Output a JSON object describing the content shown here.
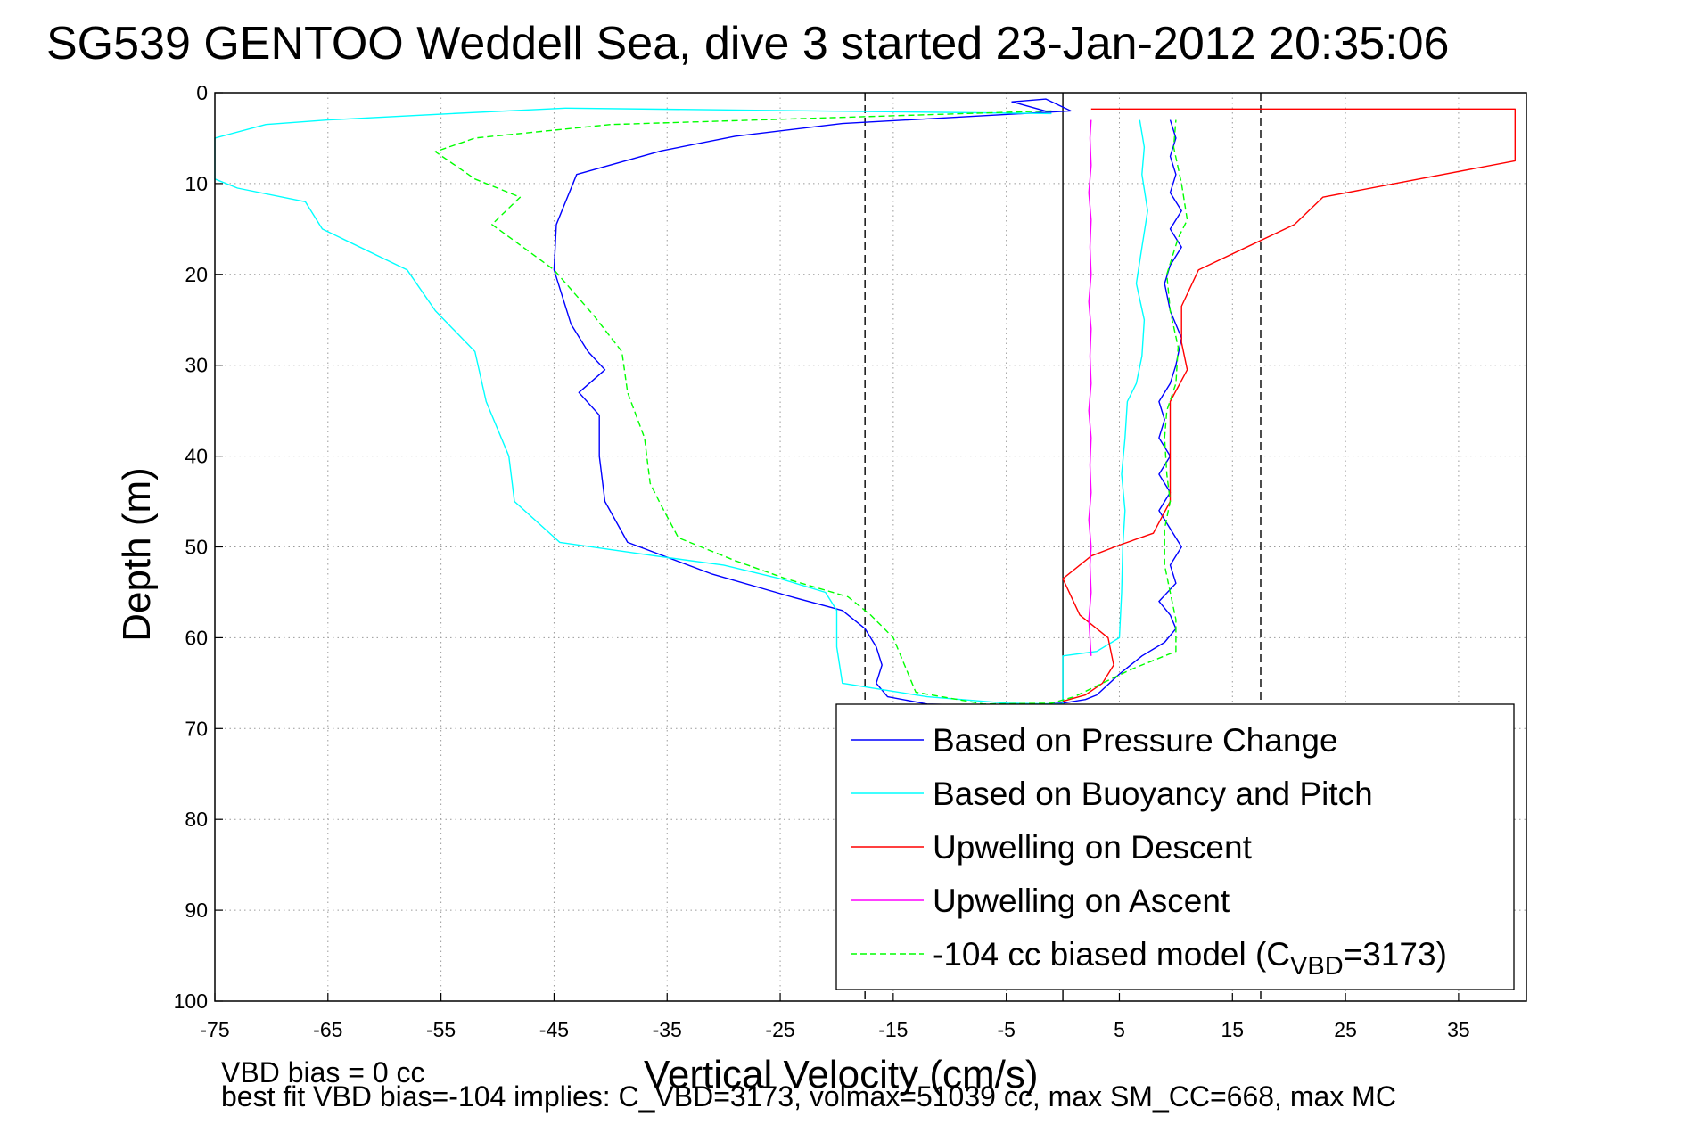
{
  "chart_data": {
    "type": "line",
    "title": "SG539 GENTOO Weddell Sea, dive 3 started 23-Jan-2012 20:35:06",
    "xlabel": "Vertical Velocity (cm/s)",
    "ylabel": "Depth (m)",
    "xlim": [
      -75,
      41
    ],
    "ylim": [
      0,
      100
    ],
    "y_reversed": true,
    "grid": true,
    "legend_position": "bottom-right",
    "x_ticks": [
      "-75",
      "-65",
      "-55",
      "-45",
      "-35",
      "-25",
      "-15",
      "-5",
      "5",
      "15",
      "25",
      "35"
    ],
    "x_tick_values": [
      -75,
      -65,
      -55,
      -45,
      -35,
      -25,
      -15,
      -5,
      5,
      15,
      25,
      35
    ],
    "y_ticks": [
      "0",
      "10",
      "20",
      "30",
      "40",
      "50",
      "60",
      "70",
      "80",
      "90",
      "100"
    ],
    "y_tick_values": [
      0,
      10,
      20,
      30,
      40,
      50,
      60,
      70,
      80,
      90,
      100
    ],
    "vertical_lines": [
      {
        "x": -17.5,
        "style": "dashed",
        "color": "#000000"
      },
      {
        "x": 0,
        "style": "solid",
        "color": "#000000"
      },
      {
        "x": 17.5,
        "style": "dashed",
        "color": "#000000"
      }
    ],
    "series": [
      {
        "name": "Based on Pressure Change",
        "color": "#0000ff",
        "dash": "solid",
        "points": [
          [
            -1,
            2.2
          ],
          [
            -4.5,
            1.0
          ],
          [
            -1.5,
            0.7
          ],
          [
            0.7,
            2.0
          ],
          [
            -19.5,
            3.4
          ],
          [
            -29,
            4.8
          ],
          [
            -35.5,
            6.4
          ],
          [
            -43,
            9.0
          ],
          [
            -44.8,
            14.5
          ],
          [
            -45,
            19.5
          ],
          [
            -43.5,
            25.5
          ],
          [
            -42,
            28.5
          ],
          [
            -40.5,
            30.5
          ],
          [
            -42.8,
            33
          ],
          [
            -41,
            35.5
          ],
          [
            -41,
            40
          ],
          [
            -40.5,
            45
          ],
          [
            -38.5,
            49.5
          ],
          [
            -31,
            53
          ],
          [
            -24,
            55.5
          ],
          [
            -19.5,
            57
          ],
          [
            -17.5,
            59
          ],
          [
            -16.5,
            61
          ],
          [
            -16,
            63
          ],
          [
            -16.5,
            65
          ],
          [
            -15.5,
            66.5
          ],
          [
            -12,
            67.3
          ],
          [
            -5,
            67.5
          ],
          [
            0,
            67.2
          ],
          [
            2,
            66.8
          ],
          [
            3,
            66.3
          ],
          [
            5,
            64
          ],
          [
            7,
            62
          ],
          [
            9,
            60.5
          ],
          [
            10,
            59
          ],
          [
            9.5,
            57.5
          ],
          [
            8.5,
            56
          ],
          [
            10,
            54
          ],
          [
            9.5,
            52
          ],
          [
            10.5,
            50
          ],
          [
            9.5,
            48
          ],
          [
            8.5,
            46
          ],
          [
            9.5,
            44
          ],
          [
            8.5,
            42
          ],
          [
            9.5,
            40
          ],
          [
            8.5,
            38
          ],
          [
            9,
            36
          ],
          [
            8.5,
            34
          ],
          [
            9.5,
            32
          ],
          [
            10,
            30
          ],
          [
            10.5,
            27
          ],
          [
            9.5,
            24
          ],
          [
            9,
            21
          ],
          [
            9.5,
            19
          ],
          [
            10.5,
            17
          ],
          [
            9.5,
            15
          ],
          [
            10.5,
            13
          ],
          [
            9.5,
            11
          ],
          [
            10,
            9
          ],
          [
            9.5,
            7
          ],
          [
            10,
            5
          ],
          [
            9.5,
            3
          ]
        ]
      },
      {
        "name": "Based on Buoyancy and Pitch",
        "color": "#00ffff",
        "dash": "solid",
        "points": [
          [
            -1,
            2.3
          ],
          [
            -44,
            1.7
          ],
          [
            -54,
            2.3
          ],
          [
            -65,
            3.0
          ],
          [
            -70.5,
            3.5
          ],
          [
            -75,
            5.0
          ],
          [
            -75,
            9.5
          ],
          [
            -73,
            10.5
          ],
          [
            -67,
            12
          ],
          [
            -65.5,
            15
          ],
          [
            -58,
            19.5
          ],
          [
            -55.5,
            24
          ],
          [
            -52,
            28.5
          ],
          [
            -51,
            34
          ],
          [
            -49,
            40
          ],
          [
            -48.5,
            45
          ],
          [
            -44.5,
            49.5
          ],
          [
            -36,
            51
          ],
          [
            -30,
            52
          ],
          [
            -25,
            53.5
          ],
          [
            -21,
            55
          ],
          [
            -20,
            57
          ],
          [
            -20,
            61
          ],
          [
            -19.5,
            65
          ],
          [
            -12,
            66.5
          ],
          [
            -5,
            67.2
          ],
          [
            0,
            67.3
          ],
          [
            0,
            62
          ],
          [
            3,
            61.5
          ],
          [
            5,
            60
          ],
          [
            5.2,
            55
          ],
          [
            5.3,
            50
          ],
          [
            5.5,
            46
          ],
          [
            5.2,
            42
          ],
          [
            5.5,
            38
          ],
          [
            5.7,
            34
          ],
          [
            6.5,
            32
          ],
          [
            7.0,
            29
          ],
          [
            7.2,
            25
          ],
          [
            6.5,
            21
          ],
          [
            7.0,
            17
          ],
          [
            7.5,
            13
          ],
          [
            7.0,
            9
          ],
          [
            7.2,
            6
          ],
          [
            6.8,
            3
          ]
        ]
      },
      {
        "name": "Upwelling on Descent",
        "color": "#ff0000",
        "dash": "solid",
        "points": [
          [
            2.5,
            1.8
          ],
          [
            40,
            1.8
          ],
          [
            40,
            7.5
          ],
          [
            23,
            11.5
          ],
          [
            20.5,
            14.5
          ],
          [
            12,
            19.5
          ],
          [
            10.5,
            23.5
          ],
          [
            10.5,
            27.5
          ],
          [
            11,
            30.5
          ],
          [
            9.5,
            34
          ],
          [
            9.5,
            45
          ],
          [
            8,
            48.5
          ],
          [
            5,
            49.8
          ],
          [
            2.5,
            51
          ],
          [
            0,
            53.5
          ],
          [
            1.5,
            57.5
          ],
          [
            4,
            60
          ],
          [
            4.5,
            63
          ],
          [
            3.5,
            65
          ],
          [
            2,
            66.3
          ],
          [
            0,
            67
          ]
        ]
      },
      {
        "name": "Upwelling on Ascent",
        "color": "#ff00ff",
        "dash": "solid",
        "points": [
          [
            2.5,
            62
          ],
          [
            2.3,
            58
          ],
          [
            2.5,
            55
          ],
          [
            2.4,
            52
          ],
          [
            2.5,
            50
          ],
          [
            2.3,
            47
          ],
          [
            2.5,
            44
          ],
          [
            2.4,
            41
          ],
          [
            2.5,
            38
          ],
          [
            2.3,
            35
          ],
          [
            2.5,
            32
          ],
          [
            2.4,
            29
          ],
          [
            2.5,
            26
          ],
          [
            2.3,
            23
          ],
          [
            2.5,
            20
          ],
          [
            2.4,
            17
          ],
          [
            2.5,
            14
          ],
          [
            2.3,
            11
          ],
          [
            2.5,
            8
          ],
          [
            2.4,
            5
          ],
          [
            2.5,
            3
          ]
        ]
      },
      {
        "name": "-104 cc biased model (C_VBD=3173)",
        "color": "#00ff00",
        "dash": "dashed",
        "points": [
          [
            -1,
            2.0
          ],
          [
            -40,
            3.5
          ],
          [
            -52,
            5.0
          ],
          [
            -55.5,
            6.5
          ],
          [
            -52,
            9.5
          ],
          [
            -48,
            11.5
          ],
          [
            -50.5,
            14.5
          ],
          [
            -45,
            19.5
          ],
          [
            -41.5,
            24.5
          ],
          [
            -39,
            28.5
          ],
          [
            -38.5,
            33
          ],
          [
            -37,
            38
          ],
          [
            -36.5,
            43
          ],
          [
            -35.5,
            45.5
          ],
          [
            -34,
            49
          ],
          [
            -29,
            51.5
          ],
          [
            -24.5,
            53.5
          ],
          [
            -19,
            55.5
          ],
          [
            -17,
            57.5
          ],
          [
            -15,
            60
          ],
          [
            -14,
            63
          ],
          [
            -13,
            66
          ],
          [
            -7,
            67.3
          ],
          [
            -1,
            67.2
          ],
          [
            1,
            66.5
          ],
          [
            3.5,
            65
          ],
          [
            6,
            63.5
          ],
          [
            10,
            61.5
          ],
          [
            10,
            58
          ],
          [
            9.5,
            55
          ],
          [
            9,
            52
          ],
          [
            9,
            48
          ],
          [
            9.5,
            45
          ],
          [
            9.2,
            42
          ],
          [
            9.0,
            38
          ],
          [
            9.2,
            35
          ],
          [
            10,
            32
          ],
          [
            10.2,
            28
          ],
          [
            9.5,
            24
          ],
          [
            9.2,
            20
          ],
          [
            10.2,
            16
          ],
          [
            11,
            14
          ],
          [
            10.5,
            10
          ],
          [
            9.8,
            6
          ],
          [
            10,
            3
          ]
        ]
      }
    ],
    "legend": [
      {
        "text": "Based on Pressure Change",
        "color": "#0000ff",
        "dash": "solid"
      },
      {
        "text": "Based on Buoyancy and Pitch",
        "color": "#00ffff",
        "dash": "solid"
      },
      {
        "text": "Upwelling on Descent",
        "color": "#ff0000",
        "dash": "solid"
      },
      {
        "text": "Upwelling on Ascent",
        "color": "#ff00ff",
        "dash": "solid"
      },
      {
        "text": "-104 cc biased model (C",
        "sub": "VBD",
        "suffix": "=3173)",
        "color": "#00ff00",
        "dash": "dashed"
      }
    ],
    "annotations": {
      "line1": "VBD bias = 0 cc",
      "line2": "best fit VBD bias=-104 implies: C_VBD=3173, volmax=51039 cc, max SM_CC=668, max MC"
    }
  }
}
